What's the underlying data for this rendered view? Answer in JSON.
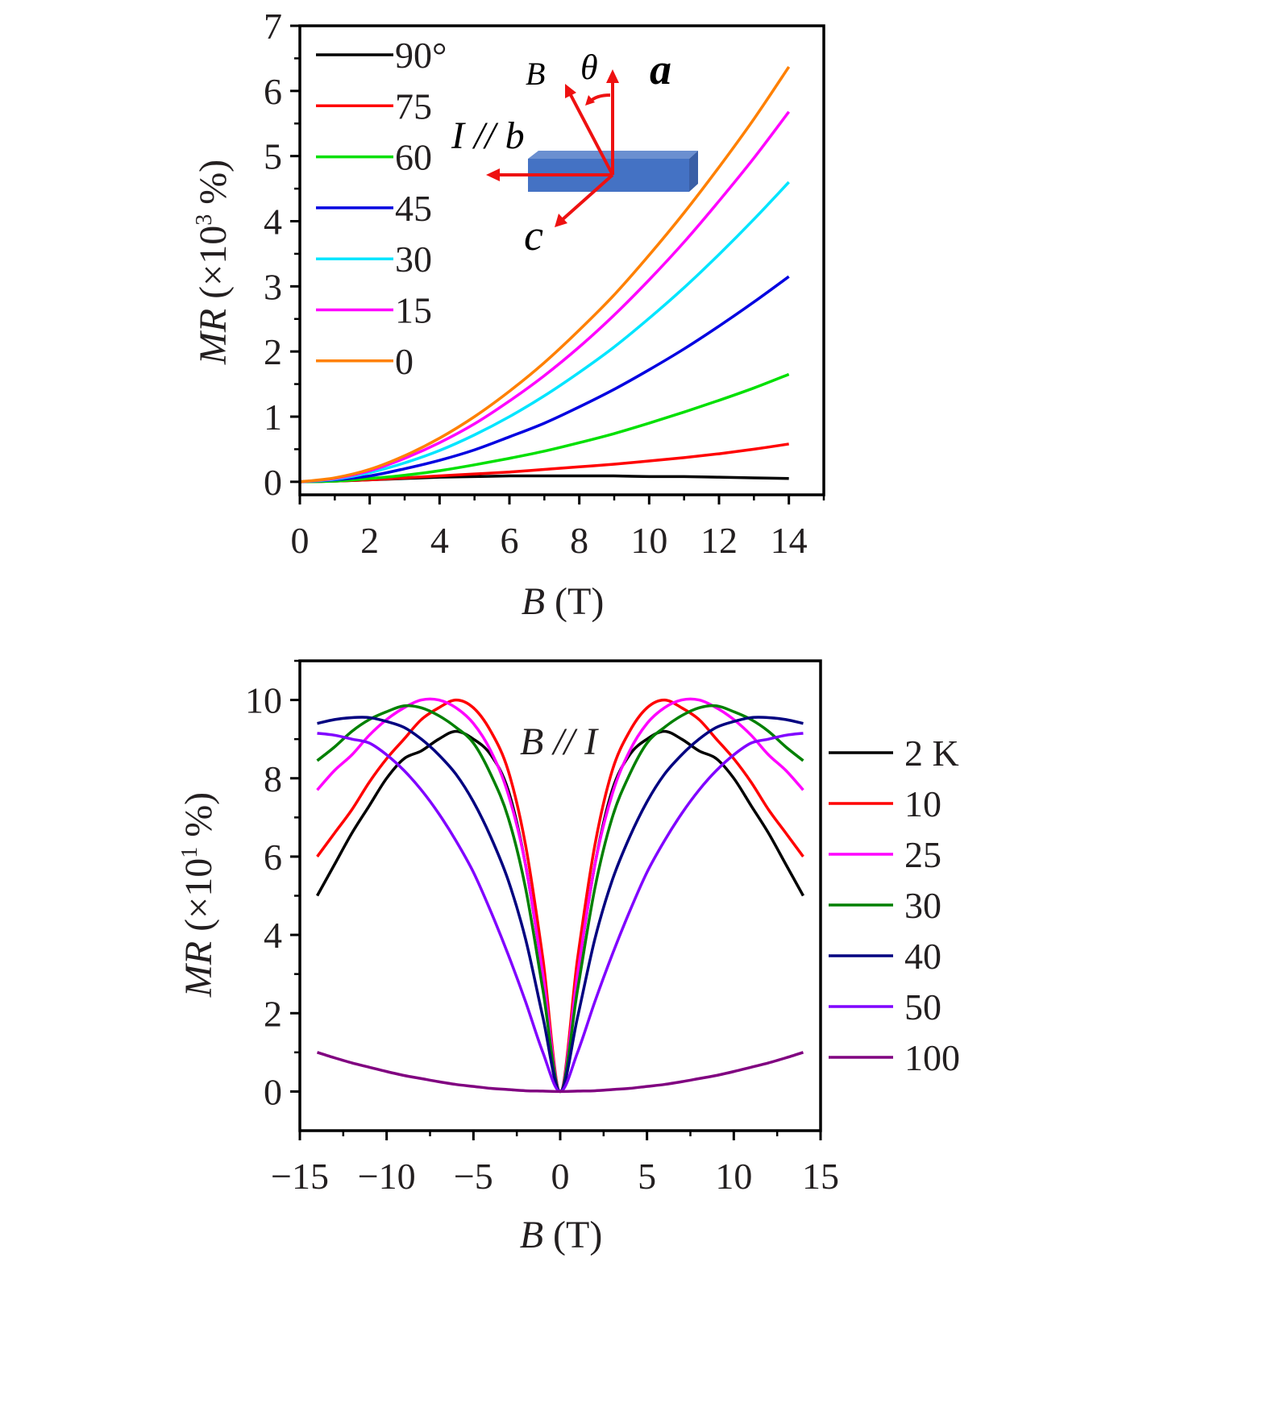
{
  "chart_data": [
    {
      "type": "line",
      "xlabel": {
        "var": "B",
        "unit": "(T)"
      },
      "ylabel": {
        "var": "MR",
        "unit_pre": "(×10",
        "exp": "3",
        "unit_post": " %)"
      },
      "xlim": [
        0,
        15
      ],
      "ylim": [
        -0.2,
        7
      ],
      "xticks": [
        0,
        2,
        4,
        6,
        8,
        10,
        12,
        14
      ],
      "yticks": [
        0,
        1,
        2,
        3,
        4,
        5,
        6,
        7
      ],
      "grid": false,
      "legend_position": "top-left",
      "x": [
        0,
        1,
        2,
        3,
        4,
        5,
        6,
        7,
        8,
        9,
        10,
        11,
        12,
        13,
        14
      ],
      "series": [
        {
          "name": "90°",
          "color": "#000000",
          "values": [
            0,
            0.01,
            0.03,
            0.05,
            0.07,
            0.08,
            0.09,
            0.09,
            0.09,
            0.09,
            0.08,
            0.08,
            0.07,
            0.06,
            0.05
          ]
        },
        {
          "name": "75",
          "color": "#ff0000",
          "values": [
            0,
            0.01,
            0.03,
            0.06,
            0.09,
            0.12,
            0.15,
            0.19,
            0.23,
            0.27,
            0.32,
            0.37,
            0.43,
            0.5,
            0.58
          ]
        },
        {
          "name": "60",
          "color": "#00e000",
          "values": [
            0,
            0.01,
            0.05,
            0.1,
            0.17,
            0.26,
            0.36,
            0.47,
            0.6,
            0.74,
            0.9,
            1.07,
            1.25,
            1.44,
            1.65
          ]
        },
        {
          "name": "45",
          "color": "#0000e0",
          "values": [
            0,
            0.03,
            0.09,
            0.2,
            0.33,
            0.49,
            0.69,
            0.9,
            1.15,
            1.42,
            1.72,
            2.04,
            2.39,
            2.76,
            3.15
          ]
        },
        {
          "name": "30",
          "color": "#00e5ff",
          "values": [
            0,
            0.04,
            0.14,
            0.29,
            0.48,
            0.72,
            1.0,
            1.32,
            1.68,
            2.07,
            2.51,
            2.98,
            3.49,
            4.03,
            4.6
          ]
        },
        {
          "name": "15",
          "color": "#ff00ff",
          "values": [
            0,
            0.05,
            0.17,
            0.36,
            0.6,
            0.89,
            1.24,
            1.63,
            2.07,
            2.56,
            3.1,
            3.68,
            4.31,
            4.97,
            5.68
          ]
        },
        {
          "name": "0",
          "color": "#ff8000",
          "values": [
            0,
            0.06,
            0.19,
            0.4,
            0.67,
            1.0,
            1.39,
            1.83,
            2.33,
            2.87,
            3.48,
            4.13,
            4.83,
            5.57,
            6.37
          ]
        }
      ],
      "inset": {
        "b_label": "B",
        "theta_label": "θ",
        "panel_label": "a",
        "current_label": "I // b",
        "c_label": "c",
        "crystal_color": "#4472c4",
        "arrow_color": "#ee1111"
      }
    },
    {
      "type": "line",
      "xlabel": {
        "var": "B",
        "unit": "(T)"
      },
      "ylabel": {
        "var": "MR",
        "unit_pre": "(×10",
        "exp": "1",
        "unit_post": " %)"
      },
      "xlim": [
        -15,
        15
      ],
      "ylim": [
        -1,
        11
      ],
      "xticks": [
        -15,
        -10,
        -5,
        0,
        5,
        10,
        15
      ],
      "xtick_labels": [
        "−15",
        "−10",
        "−5",
        "0",
        "5",
        "10",
        "15"
      ],
      "yticks": [
        0,
        2,
        4,
        6,
        8,
        10
      ],
      "grid": false,
      "annotation": "B // I",
      "legend_position": "right",
      "abs_x": [
        0,
        1,
        2,
        3,
        4,
        5,
        6,
        7,
        8,
        9,
        10,
        11,
        12,
        13,
        14
      ],
      "symmetric": true,
      "series": [
        {
          "name": "2 K",
          "color": "#000000",
          "values": [
            0,
            3.0,
            5.8,
            7.7,
            8.6,
            9.0,
            9.2,
            9.0,
            8.7,
            8.5,
            8.0,
            7.3,
            6.6,
            5.8,
            5.0
          ]
        },
        {
          "name": "10",
          "color": "#ff0000",
          "values": [
            0,
            3.4,
            6.3,
            8.2,
            9.2,
            9.8,
            10.0,
            9.8,
            9.5,
            9.0,
            8.5,
            7.9,
            7.2,
            6.6,
            6.0
          ]
        },
        {
          "name": "25",
          "color": "#ff00ff",
          "values": [
            0,
            3.0,
            5.8,
            7.6,
            8.7,
            9.4,
            9.8,
            10.0,
            10.0,
            9.8,
            9.5,
            9.1,
            8.6,
            8.2,
            7.7
          ]
        },
        {
          "name": "30",
          "color": "#008000",
          "values": [
            0,
            2.6,
            5.2,
            7.0,
            8.1,
            8.9,
            9.3,
            9.6,
            9.8,
            9.85,
            9.7,
            9.5,
            9.2,
            8.8,
            8.45
          ]
        },
        {
          "name": "40",
          "color": "#000080",
          "values": [
            0,
            1.9,
            3.9,
            5.4,
            6.5,
            7.4,
            8.1,
            8.6,
            9.0,
            9.3,
            9.45,
            9.55,
            9.55,
            9.5,
            9.4
          ]
        },
        {
          "name": "50",
          "color": "#8000ff",
          "values": [
            0,
            1.0,
            2.3,
            3.5,
            4.6,
            5.6,
            6.4,
            7.1,
            7.7,
            8.2,
            8.6,
            8.9,
            9.0,
            9.1,
            9.15
          ]
        },
        {
          "name": "100",
          "color": "#800080",
          "values": [
            0,
            0.01,
            0.02,
            0.05,
            0.08,
            0.13,
            0.18,
            0.25,
            0.33,
            0.41,
            0.51,
            0.62,
            0.73,
            0.86,
            1.0
          ]
        }
      ]
    }
  ]
}
